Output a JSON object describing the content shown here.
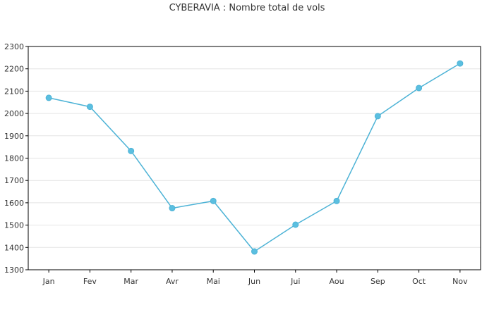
{
  "chart_data": {
    "type": "line",
    "title": "CYBERAVIA : Nombre total de vols",
    "xlabel": "",
    "ylabel": "",
    "categories": [
      "Jan",
      "Fev",
      "Mar",
      "Avr",
      "Mai",
      "Jun",
      "Jui",
      "Aou",
      "Sep",
      "Oct",
      "Nov"
    ],
    "series": [
      {
        "values": [
          2070,
          2030,
          1832,
          1576,
          1608,
          1382,
          1502,
          1608,
          1988,
          2114,
          2224
        ]
      }
    ],
    "ylim": [
      1300,
      2300
    ],
    "yticks": [
      1300,
      1400,
      1500,
      1600,
      1700,
      1800,
      1900,
      2000,
      2100,
      2200,
      2300
    ],
    "grid": true,
    "legend": "none",
    "colors": {
      "line": "#4db3d6",
      "marker": "#5bbfe0",
      "grid": "#e4e4e4",
      "axis": "#000000",
      "text": "#333333"
    }
  }
}
